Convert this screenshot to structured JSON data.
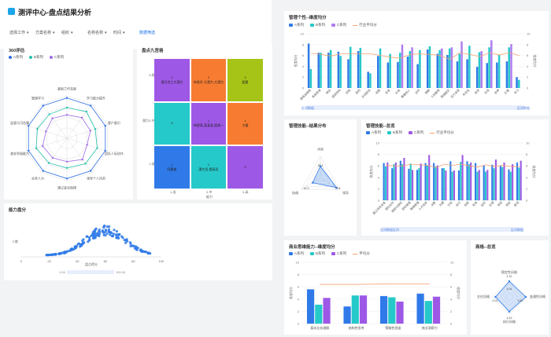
{
  "header": {
    "title": "测评中心-盘点结果分析",
    "filters": [
      "选择工作",
      "方案名称",
      "组织",
      "名称名称",
      "时间"
    ],
    "action": "数据筛选",
    "arrow": "▾"
  },
  "radar360": {
    "title": "360评估",
    "legend": [
      "A系列",
      "B系列",
      "C系列"
    ],
    "colors": [
      "#2f6fe4",
      "#24c2a9",
      "#9e6ce6"
    ],
    "axes": [
      "基础工作态度",
      "学习能力提升",
      "客户意识",
      "团队人际协作",
      "领导个人风范",
      "通过变化阻碍",
      "业务人力",
      "激发积极能力",
      "监管与可信赖",
      "管理学习"
    ]
  },
  "nineBox": {
    "title": "盘点九宫格",
    "ylabel": "潜力",
    "xlabel": "能力",
    "yticks": [
      "3-高",
      "2-中",
      "1-低"
    ],
    "xticks": [
      "1-低",
      "2-中",
      "3-高"
    ],
    "cells": [
      {
        "num": "1",
        "text": "潜力员工大潜力",
        "color": "#9e58e6"
      },
      {
        "num": "2",
        "text": "待晋升,大潜力,大潜力",
        "color": "#f77c32"
      },
      {
        "num": "2",
        "text": "超星",
        "color": "#a5c417"
      },
      {
        "num": "0",
        "text": "",
        "color": "#26c9c9"
      },
      {
        "num": "1",
        "text": "待提高,某某某,提高一",
        "color": "#9e58e6"
      },
      {
        "num": "1",
        "text": "力量",
        "color": "#f77c32"
      },
      {
        "num": "1",
        "text": "问题者",
        "color": "#2f7ae8"
      },
      {
        "num": "1",
        "text": "潜力员,提高员",
        "color": "#26c9c9"
      },
      {
        "num": "0",
        "text": "",
        "color": "#9e58e6"
      }
    ]
  },
  "ability": {
    "title": "能力盘分",
    "ylabel": "人数",
    "xlabel": "盘点得分",
    "xticks": [
      "0",
      "20",
      "40",
      "60",
      "80",
      "100"
    ],
    "sliderLeft": "0.00",
    "sliderRight": "100.00"
  },
  "mgmtPersonality": {
    "title": "管理个性--维度均分",
    "legend": [
      "A系列",
      "B系列",
      "C系列",
      "行业平均分"
    ],
    "colors": [
      "#2f7ae8",
      "#26c9c9",
      "#b07cf0",
      "#f5a372"
    ],
    "yticks": [
      "10",
      "8",
      "6",
      "4",
      "2",
      "0"
    ],
    "y2ticks": [
      "10",
      "8",
      "6",
      "4",
      "2",
      "0"
    ],
    "ylabel": "维度均分",
    "y2label": "维度均分",
    "categories": [
      "高挑战维度",
      "系统思维",
      "规划",
      "成就导向",
      "控制",
      "冒险",
      "主动担当",
      "说服",
      "关系",
      "社会",
      "尊重他人",
      "合作",
      "理解",
      "人际敏感",
      "情绪稳定",
      "压力承受",
      "灵活性",
      "自信",
      "乐观",
      "自律",
      "正直",
      "学习"
    ],
    "values": {
      "A": [
        8.2,
        6.5,
        6.5,
        6.7,
        5.3,
        6.8,
        3.0,
        5.9,
        4.7,
        4.8,
        5.8,
        4.4,
        7.1,
        6.3,
        6.1,
        4.9,
        5.3,
        3.9,
        4.6,
        4.7,
        4.9,
        2.0
      ],
      "B": [
        3.5,
        6.5,
        7.0,
        5.9,
        7.6,
        7.4,
        2.7,
        7.3,
        6.3,
        6.5,
        6.8,
        7.0,
        7.7,
        7.0,
        7.3,
        6.3,
        7.8,
        6.6,
        7.5,
        6.1,
        7.5,
        1.5
      ],
      "C": [
        0,
        0,
        0,
        0,
        0,
        0,
        0,
        0,
        0,
        8.0,
        7.5,
        0,
        0,
        7.3,
        7.5,
        8.6,
        0,
        6.8,
        8.8,
        0,
        8.1,
        0
      ],
      "Avg": [
        6.4,
        6.2,
        5.9,
        6.3,
        6.3,
        6.3,
        6.3,
        6.0,
        5.7,
        5.5,
        6.2,
        6.3,
        6.2,
        6.0,
        5.3,
        6.5,
        6.2,
        5.8,
        6.5,
        6.1,
        6.5,
        6.0
      ]
    },
    "sliderLeft": "区间数据",
    "sliderRight": "区间数据"
  },
  "mgmtRadar": {
    "title": "管理技能--结果分布",
    "axes": [
      "冲突",
      "领导",
      "协调"
    ],
    "ticks": [
      "39.4",
      "21.8",
      "30.3"
    ]
  },
  "mgmtSkills": {
    "title": "管理技能--总览",
    "legend": [
      "A系列",
      "B系列",
      "C系列",
      "行业平均分"
    ],
    "colors": [
      "#2f7ae8",
      "#26c9c9",
      "#9e58e6",
      "#f5a372"
    ],
    "yticks": [
      "10",
      "8",
      "6",
      "4",
      "2",
      "0"
    ],
    "y2ticks": [
      "10",
      "8",
      "6",
      "4",
      "2",
      "0"
    ],
    "ylabel": "维度均分",
    "y2label": "维度均分",
    "categories": [
      "建立信任关系",
      "团队协作",
      "激励与授权",
      "目标管理",
      "情绪管理",
      "人才培养",
      "决策",
      "沟通",
      "计划",
      "执行",
      "创新",
      "变革",
      "监控",
      "反馈",
      "领导",
      "授权",
      "影响"
    ],
    "values": {
      "A": [
        6.5,
        5.6,
        6.9,
        5.5,
        5.3,
        6.5,
        6.5,
        5.6,
        6.8,
        5.2,
        6.8,
        6.5,
        6.1,
        6.2,
        6.0,
        5.4,
        6.6
      ],
      "B": [
        5.9,
        6.3,
        6.3,
        6.4,
        5.6,
        6.1,
        5.9,
        5.6,
        5.0,
        6.7,
        6.3,
        5.0,
        5.0,
        5.6,
        5.8,
        5.0,
        5.7
      ],
      "C": [
        6.6,
        6.6,
        7.4,
        5.3,
        6.4,
        7.9,
        6.1,
        5.2,
        5.2,
        7.9,
        6.6,
        5.3,
        5.3,
        7.1,
        6.6,
        6.3,
        6.9
      ],
      "Avg": [
        6.1,
        6.0,
        6.0,
        6.3,
        6.2,
        6.1,
        5.7,
        6.3,
        6.1,
        6.3,
        6.0,
        5.8,
        6.2,
        5.9,
        6.1,
        5.9,
        5.9
      ]
    },
    "sliderLeft": "区间数据区间",
    "sliderRight": "区间数据"
  },
  "bizCapability": {
    "title": "商业思维能力--维度均分",
    "legend": [
      "A系列",
      "B系列",
      "C系列",
      "平均分"
    ],
    "colors": [
      "#2f7ae8",
      "#26c9c9",
      "#9e58e6",
      "#f5a372"
    ],
    "yticks": [
      "10",
      "8",
      "6",
      "4",
      "2",
      "0"
    ],
    "y2ticks": [
      "10",
      "8",
      "6",
      "4",
      "2",
      "0"
    ],
    "ylabel": "维度均分",
    "y2label": "维度均分",
    "categories": [
      "基本业务理解",
      "结构性思考",
      "策略性思维",
      "商业洞察力"
    ],
    "values": {
      "A": [
        5.6,
        2.8,
        4.5,
        4.9
      ],
      "B": [
        3.1,
        4.6,
        4.3,
        3.7
      ],
      "C": [
        4.2,
        4.6,
        3.6,
        4.4
      ],
      "Avg": [
        6.4,
        6.4,
        6.5,
        6.5
      ]
    }
  },
  "personality": {
    "title": "商格--总览",
    "axes": [
      "稳定性风格",
      "变通性风格",
      "交往风格",
      "执行风格",
      "行动风格",
      "情绪状态"
    ],
    "ticks": [
      "4.32",
      "4.49",
      "4.01",
      "4.04",
      "5.80"
    ]
  }
}
